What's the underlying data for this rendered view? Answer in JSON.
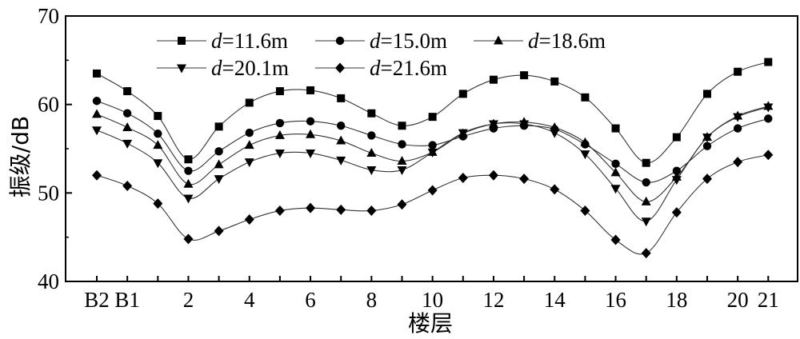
{
  "chart_data": {
    "type": "line",
    "xlabel": "楼层",
    "ylabel": "振级/dB",
    "ylim": [
      40,
      70
    ],
    "yticks": [
      40,
      50,
      60,
      70
    ],
    "grid": false,
    "legend_position": "top-center",
    "categories": [
      "B2",
      "B1",
      "1",
      "2",
      "3",
      "4",
      "5",
      "6",
      "7",
      "8",
      "9",
      "10",
      "11",
      "12",
      "13",
      "14",
      "15",
      "16",
      "17",
      "18",
      "19",
      "20",
      "21"
    ],
    "xtick_labels": [
      "B2",
      "B1",
      "",
      "2",
      "",
      "4",
      "",
      "6",
      "",
      "8",
      "",
      "10",
      "",
      "12",
      "",
      "14",
      "",
      "16",
      "",
      "18",
      "",
      "20",
      "21"
    ],
    "series": [
      {
        "name_prefix": "d",
        "name_suffix": "=11.6m",
        "marker": "square",
        "values": [
          63.5,
          61.5,
          58.7,
          53.8,
          57.5,
          60.2,
          61.5,
          61.6,
          60.7,
          59.0,
          57.6,
          58.6,
          61.2,
          62.8,
          63.3,
          62.6,
          60.8,
          57.3,
          53.4,
          56.3,
          61.2,
          63.7,
          64.8
        ]
      },
      {
        "name_prefix": "d",
        "name_suffix": "=15.0m",
        "marker": "circle",
        "values": [
          60.4,
          59.0,
          56.7,
          52.5,
          54.7,
          56.8,
          57.9,
          58.1,
          57.6,
          56.5,
          55.5,
          55.4,
          56.4,
          57.3,
          57.6,
          57.2,
          55.5,
          53.3,
          51.2,
          52.5,
          55.3,
          57.3,
          58.4
        ]
      },
      {
        "name_prefix": "d",
        "name_suffix": "=18.6m",
        "marker": "triangle-up",
        "values": [
          58.9,
          57.4,
          55.4,
          51.0,
          53.2,
          55.4,
          56.5,
          56.6,
          55.9,
          54.5,
          53.6,
          54.6,
          56.7,
          57.8,
          58.0,
          57.4,
          55.7,
          52.3,
          49.0,
          51.8,
          56.3,
          58.7,
          59.8
        ]
      },
      {
        "name_prefix": "d",
        "name_suffix": "=20.1m",
        "marker": "triangle-down",
        "values": [
          57.1,
          55.6,
          53.4,
          49.4,
          51.6,
          53.5,
          54.5,
          54.5,
          53.7,
          52.6,
          52.6,
          54.6,
          56.8,
          57.8,
          57.8,
          56.8,
          54.4,
          50.5,
          46.8,
          51.5,
          56.3,
          58.6,
          59.7
        ]
      },
      {
        "name_prefix": "d",
        "name_suffix": "=21.6m",
        "marker": "diamond",
        "values": [
          52.0,
          50.8,
          48.8,
          44.8,
          45.7,
          47.0,
          48.0,
          48.3,
          48.1,
          48.0,
          48.7,
          50.3,
          51.7,
          52.0,
          51.6,
          50.4,
          48.0,
          44.7,
          43.2,
          47.8,
          51.6,
          53.5,
          54.3
        ]
      }
    ]
  }
}
